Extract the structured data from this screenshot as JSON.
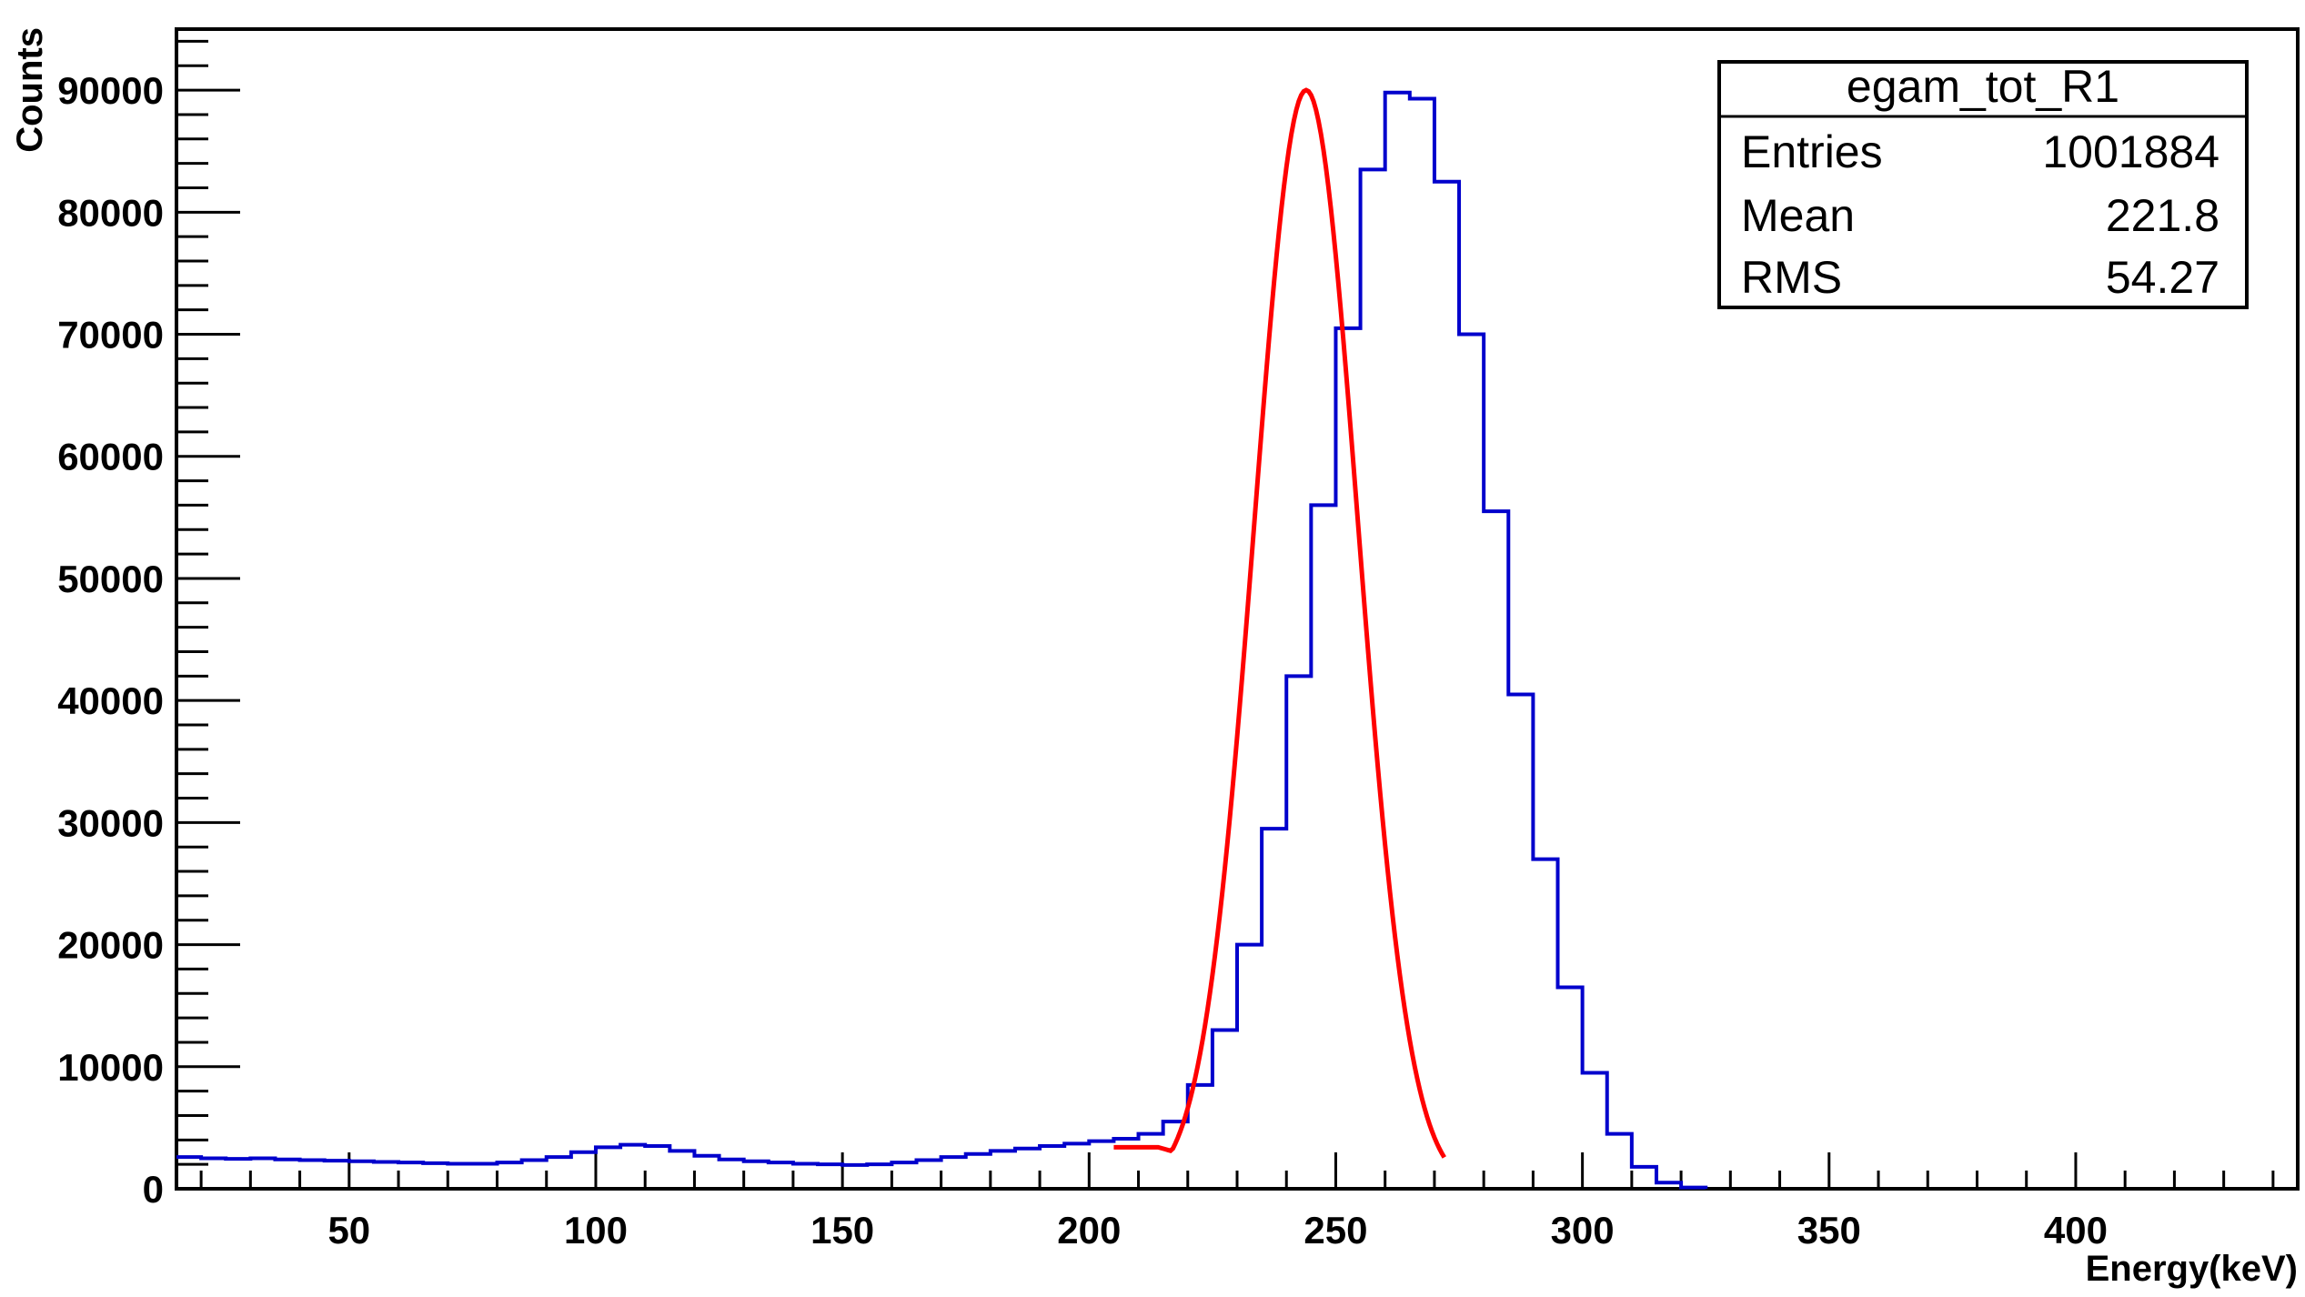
{
  "chart_data": {
    "type": "histogram",
    "xlabel": "Energy(keV)",
    "ylabel": "Counts",
    "xlim": [
      15,
      445
    ],
    "ylim": [
      0,
      95000
    ],
    "x_ticks": [
      50,
      100,
      150,
      200,
      250,
      300,
      350,
      400
    ],
    "y_ticks": [
      0,
      10000,
      20000,
      30000,
      40000,
      50000,
      60000,
      70000,
      80000,
      90000
    ],
    "grid": false,
    "bin_width": 5,
    "histogram": {
      "color": "#0000cc",
      "bins": [
        [
          15,
          2600
        ],
        [
          20,
          2500
        ],
        [
          25,
          2450
        ],
        [
          30,
          2500
        ],
        [
          35,
          2400
        ],
        [
          40,
          2350
        ],
        [
          45,
          2300
        ],
        [
          50,
          2250
        ],
        [
          55,
          2200
        ],
        [
          60,
          2150
        ],
        [
          65,
          2100
        ],
        [
          70,
          2050
        ],
        [
          75,
          2050
        ],
        [
          80,
          2150
        ],
        [
          85,
          2350
        ],
        [
          90,
          2600
        ],
        [
          95,
          3000
        ],
        [
          100,
          3400
        ],
        [
          105,
          3600
        ],
        [
          110,
          3500
        ],
        [
          115,
          3100
        ],
        [
          120,
          2700
        ],
        [
          125,
          2400
        ],
        [
          130,
          2250
        ],
        [
          135,
          2150
        ],
        [
          140,
          2050
        ],
        [
          145,
          2000
        ],
        [
          150,
          1950
        ],
        [
          155,
          2000
        ],
        [
          160,
          2150
        ],
        [
          165,
          2350
        ],
        [
          170,
          2600
        ],
        [
          175,
          2850
        ],
        [
          180,
          3100
        ],
        [
          185,
          3300
        ],
        [
          190,
          3500
        ],
        [
          195,
          3700
        ],
        [
          200,
          3900
        ],
        [
          205,
          4100
        ],
        [
          210,
          4500
        ],
        [
          215,
          5500
        ],
        [
          220,
          8500
        ],
        [
          225,
          13000
        ],
        [
          230,
          20000
        ],
        [
          235,
          29500
        ],
        [
          240,
          42000
        ],
        [
          245,
          56000
        ],
        [
          250,
          70500
        ],
        [
          255,
          83500
        ],
        [
          260,
          89800
        ],
        [
          265,
          89300
        ],
        [
          270,
          82500
        ],
        [
          275,
          70000
        ],
        [
          280,
          55500
        ],
        [
          285,
          40500
        ],
        [
          290,
          27000
        ],
        [
          295,
          16500
        ],
        [
          300,
          9500
        ],
        [
          305,
          4500
        ],
        [
          310,
          1800
        ],
        [
          315,
          500
        ],
        [
          320,
          100
        ]
      ]
    },
    "fit": {
      "color": "#ff0000",
      "x_range": [
        205,
        272
      ],
      "model": "gaussian",
      "peak": 90000,
      "mean": 244,
      "sigma": 10.5,
      "baseline": 3400
    },
    "stats_box": {
      "title": "egam_tot_R1",
      "rows": [
        {
          "label": "Entries",
          "value": "1001884"
        },
        {
          "label": "Mean",
          "value": "221.8"
        },
        {
          "label": "RMS",
          "value": "54.27"
        }
      ],
      "placement": "top-right"
    }
  }
}
